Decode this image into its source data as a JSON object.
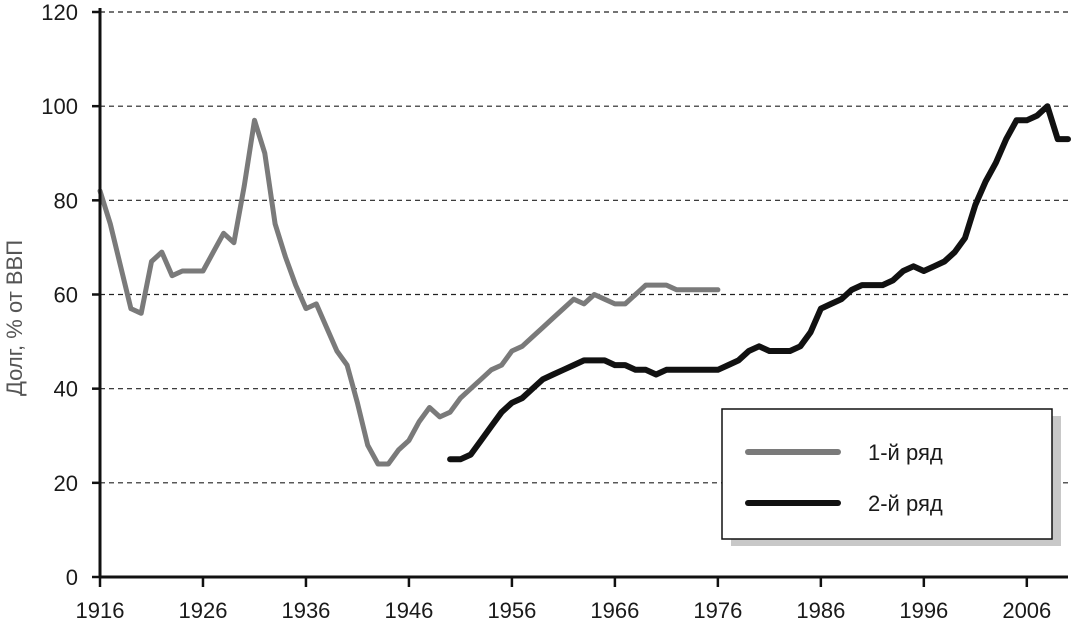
{
  "chart_data": {
    "type": "line",
    "title": "",
    "xlabel": "",
    "ylabel": "Долг, % от ВВП",
    "xlim": [
      1916,
      2010
    ],
    "ylim": [
      0,
      120
    ],
    "x_ticks": [
      1916,
      1926,
      1936,
      1946,
      1956,
      1966,
      1976,
      1986,
      1996,
      2006
    ],
    "x_tick_labels": [
      "1916",
      "1926",
      "1936",
      "1946",
      "1956",
      "1966",
      "1976",
      "1986",
      "1996",
      "2006"
    ],
    "y_ticks": [
      0,
      20,
      40,
      60,
      80,
      100,
      120
    ],
    "y_tick_labels": [
      "0",
      "20",
      "40",
      "60",
      "80",
      "100",
      "120"
    ],
    "grid": "horizontal dashed",
    "legend_position": "bottom-right",
    "series": [
      {
        "name": "1-й ряд",
        "color": "#7a7a7a",
        "x": [
          1916,
          1917,
          1918,
          1919,
          1920,
          1921,
          1922,
          1923,
          1924,
          1925,
          1926,
          1927,
          1928,
          1929,
          1930,
          1931,
          1932,
          1933,
          1934,
          1935,
          1936,
          1937,
          1938,
          1939,
          1940,
          1941,
          1942,
          1943,
          1944,
          1945,
          1946,
          1947,
          1948,
          1949,
          1950,
          1951,
          1952,
          1953,
          1954,
          1955,
          1956,
          1957,
          1958,
          1959,
          1960,
          1961,
          1962,
          1963,
          1964,
          1965,
          1966,
          1967,
          1968,
          1969,
          1970,
          1971,
          1972,
          1973,
          1974,
          1975,
          1976
        ],
        "values": [
          82,
          75,
          66,
          57,
          56,
          67,
          69,
          64,
          65,
          65,
          65,
          69,
          73,
          71,
          83,
          97,
          90,
          75,
          68,
          62,
          57,
          58,
          53,
          48,
          45,
          37,
          28,
          24,
          24,
          27,
          29,
          33,
          36,
          34,
          35,
          38,
          40,
          42,
          44,
          45,
          48,
          49,
          51,
          53,
          55,
          57,
          59,
          58,
          60,
          59,
          58,
          58,
          60,
          62,
          62,
          62,
          61,
          61,
          61,
          61,
          61
        ]
      },
      {
        "name": "2-й ряд",
        "color": "#111111",
        "x": [
          1950,
          1951,
          1952,
          1953,
          1954,
          1955,
          1956,
          1957,
          1958,
          1959,
          1960,
          1961,
          1962,
          1963,
          1964,
          1965,
          1966,
          1967,
          1968,
          1969,
          1970,
          1971,
          1972,
          1973,
          1974,
          1975,
          1976,
          1977,
          1978,
          1979,
          1980,
          1981,
          1982,
          1983,
          1984,
          1985,
          1986,
          1987,
          1988,
          1989,
          1990,
          1991,
          1992,
          1993,
          1994,
          1995,
          1996,
          1997,
          1998,
          1999,
          2000,
          2001,
          2002,
          2003,
          2004,
          2005,
          2006,
          2007,
          2008,
          2009,
          2010
        ],
        "values": [
          25,
          25,
          26,
          29,
          32,
          35,
          37,
          38,
          40,
          42,
          43,
          44,
          45,
          46,
          46,
          46,
          45,
          45,
          44,
          44,
          43,
          44,
          44,
          44,
          44,
          44,
          44,
          45,
          46,
          48,
          49,
          48,
          48,
          48,
          49,
          52,
          57,
          58,
          59,
          61,
          62,
          62,
          62,
          63,
          65,
          66,
          65,
          66,
          67,
          69,
          72,
          79,
          84,
          88,
          93,
          97,
          97,
          98,
          100,
          93,
          93
        ]
      }
    ]
  }
}
